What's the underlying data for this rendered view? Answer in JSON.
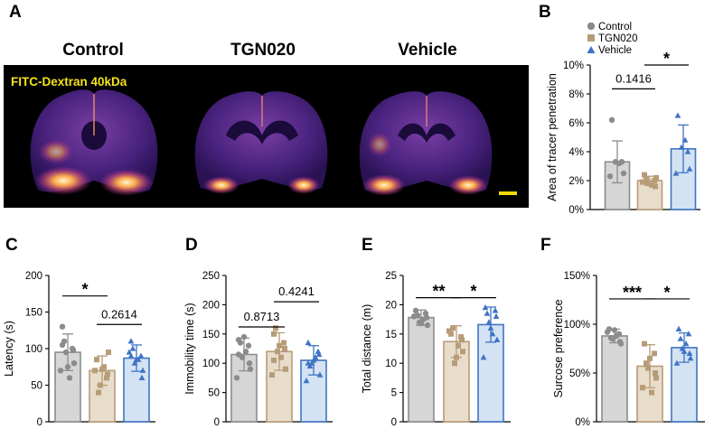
{
  "panels": {
    "A": "A",
    "B": "B",
    "C": "C",
    "D": "D",
    "E": "E",
    "F": "F"
  },
  "imaging": {
    "titles": [
      "Control",
      "TGN020",
      "Vehicle"
    ],
    "label": "FITC-Dextran 40kDa",
    "background": "#000000",
    "scale_bar_color": "#f5d800"
  },
  "colors": {
    "control_fill": "#d6d6d6",
    "control_edge": "#8c8c8c",
    "tgn_fill": "#e8dccb",
    "tgn_edge": "#b79c78",
    "vehicle_fill": "#d4e3f4",
    "vehicle_edge": "#3f74c4"
  },
  "chart_data": [
    {
      "id": "B",
      "type": "bar",
      "categories": [
        "Control",
        "TGN020",
        "Vehicle"
      ],
      "legend": [
        "Control",
        "TGN020",
        "Vehicle"
      ],
      "ylabel": "Area of tracer penetration",
      "ylim": [
        0,
        10
      ],
      "yticks": [
        0,
        2,
        4,
        6,
        8,
        10
      ],
      "yticklabels": [
        "0%",
        "2%",
        "4%",
        "6%",
        "8%",
        "10%"
      ],
      "values": [
        3.3,
        2.0,
        4.2
      ],
      "errors": [
        1.45,
        0.3,
        1.65
      ],
      "points": [
        [
          6.2,
          3.3,
          3.3,
          2.5,
          2.3,
          3.2
        ],
        [
          2.4,
          2.0,
          1.8,
          2.2,
          1.9,
          1.7,
          2.1,
          1.6
        ],
        [
          6.5,
          4.0,
          4.3,
          2.8,
          2.5,
          4.8
        ]
      ],
      "annotations": [
        {
          "text": "0.1416",
          "from": 0,
          "to": 1,
          "y": 8.35
        },
        {
          "text": "*",
          "from": 1,
          "to": 2,
          "y": 10
        }
      ]
    },
    {
      "id": "C",
      "type": "bar",
      "categories": [
        "Control",
        "TGN020",
        "Vehicle"
      ],
      "ylabel": "Latency (s)",
      "ylim": [
        0,
        200
      ],
      "yticks": [
        0,
        50,
        100,
        150,
        200
      ],
      "yticklabels": [
        "0",
        "50",
        "100",
        "150",
        "200"
      ],
      "values": [
        95,
        70,
        87
      ],
      "errors": [
        25,
        20,
        18
      ],
      "points": [
        [
          130,
          100,
          95,
          80,
          70,
          60,
          110,
          98,
          75,
          105
        ],
        [
          85,
          60,
          50,
          95,
          70,
          75,
          40,
          65,
          72
        ],
        [
          110,
          90,
          80,
          70,
          95,
          85,
          100,
          60,
          85,
          90
        ]
      ],
      "annotations": [
        {
          "text": "*",
          "from": 0,
          "to": 1,
          "y": 172
        },
        {
          "text": "0.2614",
          "from": 1,
          "to": 2,
          "y": 133
        }
      ]
    },
    {
      "id": "D",
      "type": "bar",
      "categories": [
        "Control",
        "TGN020",
        "Vehicle"
      ],
      "ylabel": "Immobility time (s)",
      "ylim": [
        0,
        250
      ],
      "yticks": [
        0,
        50,
        100,
        150,
        200,
        250
      ],
      "yticklabels": [
        "0",
        "50",
        "100",
        "150",
        "200",
        "250"
      ],
      "values": [
        115,
        120,
        105
      ],
      "errors": [
        28,
        32,
        25
      ],
      "points": [
        [
          140,
          130,
          110,
          90,
          75,
          120,
          135,
          100,
          145,
          115
        ],
        [
          150,
          135,
          120,
          90,
          80,
          110,
          160,
          125,
          130,
          105
        ],
        [
          135,
          120,
          100,
          80,
          70,
          110,
          95,
          115,
          105,
          100
        ]
      ],
      "annotations": [
        {
          "text": "0.8713",
          "from": 0,
          "to": 1,
          "y": 162
        },
        {
          "text": "0.4241",
          "from": 1,
          "to": 2,
          "y": 205
        }
      ]
    },
    {
      "id": "E",
      "type": "bar",
      "categories": [
        "Control",
        "TGN020",
        "Vehicle"
      ],
      "ylabel": "Total distance (m)",
      "ylim": [
        0,
        25
      ],
      "yticks": [
        0,
        5,
        10,
        15,
        20,
        25
      ],
      "yticklabels": [
        "0",
        "5",
        "10",
        "15",
        "20",
        "25"
      ],
      "values": [
        17.8,
        13.7,
        16.6
      ],
      "errors": [
        1.3,
        2.7,
        3.0
      ],
      "points": [
        [
          19,
          18.5,
          17,
          16.5,
          18,
          17.5,
          18.2,
          17.8,
          16.8
        ],
        [
          15,
          14.5,
          10,
          12,
          15.5,
          13,
          16,
          14,
          11
        ],
        [
          19.5,
          19,
          17,
          14,
          11,
          15,
          18.5,
          18,
          16
        ]
      ],
      "annotations": [
        {
          "text": "**",
          "from": 0,
          "to": 1,
          "y": 21.2
        },
        {
          "text": "*",
          "from": 1,
          "to": 2,
          "y": 21.2
        }
      ]
    },
    {
      "id": "F",
      "type": "bar",
      "categories": [
        "Control",
        "TGN020",
        "Vehicle"
      ],
      "ylabel": "Surcose preference",
      "ylim": [
        0,
        150
      ],
      "yticks": [
        0,
        50,
        100,
        150
      ],
      "yticklabels": [
        "0%",
        "50%",
        "100%",
        "150%"
      ],
      "values": [
        88,
        57,
        76
      ],
      "errors": [
        7,
        22,
        15
      ],
      "points": [
        [
          95,
          90,
          85,
          80,
          92,
          88,
          86,
          82,
          94
        ],
        [
          80,
          70,
          55,
          45,
          35,
          30,
          60,
          50,
          65
        ],
        [
          95,
          90,
          75,
          65,
          60,
          80,
          85,
          70,
          72
        ]
      ],
      "annotations": [
        {
          "text": "***",
          "from": 0,
          "to": 1,
          "y": 126
        },
        {
          "text": "*",
          "from": 1,
          "to": 2,
          "y": 126
        }
      ]
    }
  ]
}
